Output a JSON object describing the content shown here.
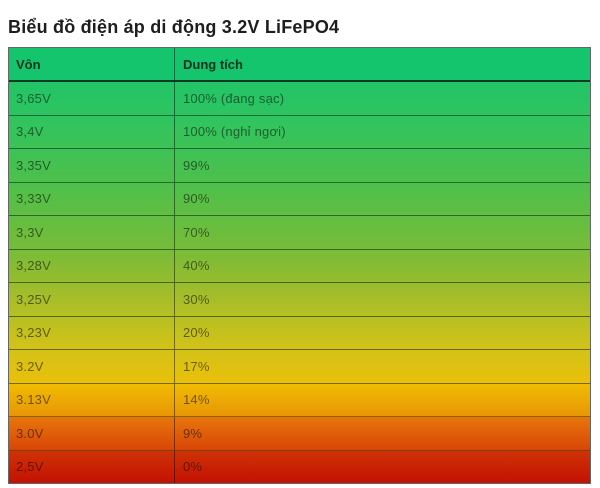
{
  "page": {
    "title": "Biểu đồ điện áp di động 3.2V LiFePO4"
  },
  "table": {
    "columns": [
      "Vôn",
      "Dung tích"
    ],
    "header_bg": "#14C56E",
    "border_color": "rgba(0,0,0,0.55)",
    "rows": [
      {
        "voltage": "3,65V",
        "capacity": "100% (đang sạc)",
        "color_top": "#22C467",
        "color_bottom": "#2EC460"
      },
      {
        "voltage": "3,4V",
        "capacity": "100% (nghỉ ngơi)",
        "color_top": "#2EC460",
        "color_bottom": "#3DC256"
      },
      {
        "voltage": "3,35V",
        "capacity": "99%",
        "color_top": "#3DC256",
        "color_bottom": "#4DC04B"
      },
      {
        "voltage": "3,33V",
        "capacity": "90%",
        "color_top": "#4DC04B",
        "color_bottom": "#61BE42"
      },
      {
        "voltage": "3,3V",
        "capacity": "70%",
        "color_top": "#61BE42",
        "color_bottom": "#78BC39"
      },
      {
        "voltage": "3,28V",
        "capacity": "40%",
        "color_top": "#78BC39",
        "color_bottom": "#96BC2E"
      },
      {
        "voltage": "3,25V",
        "capacity": "30%",
        "color_top": "#96BC2E",
        "color_bottom": "#B7C023"
      },
      {
        "voltage": "3,23V",
        "capacity": "20%",
        "color_top": "#B7C023",
        "color_bottom": "#D3C218"
      },
      {
        "voltage": "3.2V",
        "capacity": "17%",
        "color_top": "#D3C218",
        "color_bottom": "#EAC00A"
      },
      {
        "voltage": "3.13V",
        "capacity": "14%",
        "color_top": "#F0BC02",
        "color_bottom": "#E89606"
      },
      {
        "voltage": "3.0V",
        "capacity": "9%",
        "color_top": "#E8760B",
        "color_bottom": "#D84607"
      },
      {
        "voltage": "2,5V",
        "capacity": "0%",
        "color_top": "#CE3305",
        "color_bottom": "#C41104"
      }
    ]
  },
  "chart_data": {
    "type": "table",
    "title": "Biểu đồ điện áp di động 3.2V LiFePO4",
    "columns": [
      "Vôn",
      "Dung tích"
    ],
    "rows": [
      [
        "3,65V",
        "100% (đang sạc)"
      ],
      [
        "3,4V",
        "100% (nghỉ ngơi)"
      ],
      [
        "3,35V",
        "99%"
      ],
      [
        "3,33V",
        "90%"
      ],
      [
        "3,3V",
        "70%"
      ],
      [
        "3,28V",
        "40%"
      ],
      [
        "3,25V",
        "30%"
      ],
      [
        "3,23V",
        "20%"
      ],
      [
        "3.2V",
        "17%"
      ],
      [
        "3.13V",
        "14%"
      ],
      [
        "3.0V",
        "9%"
      ],
      [
        "2,5V",
        "0%"
      ]
    ],
    "color_scale": [
      "#14C56E",
      "#C41104"
    ],
    "legend_position": "none",
    "grid": true
  }
}
